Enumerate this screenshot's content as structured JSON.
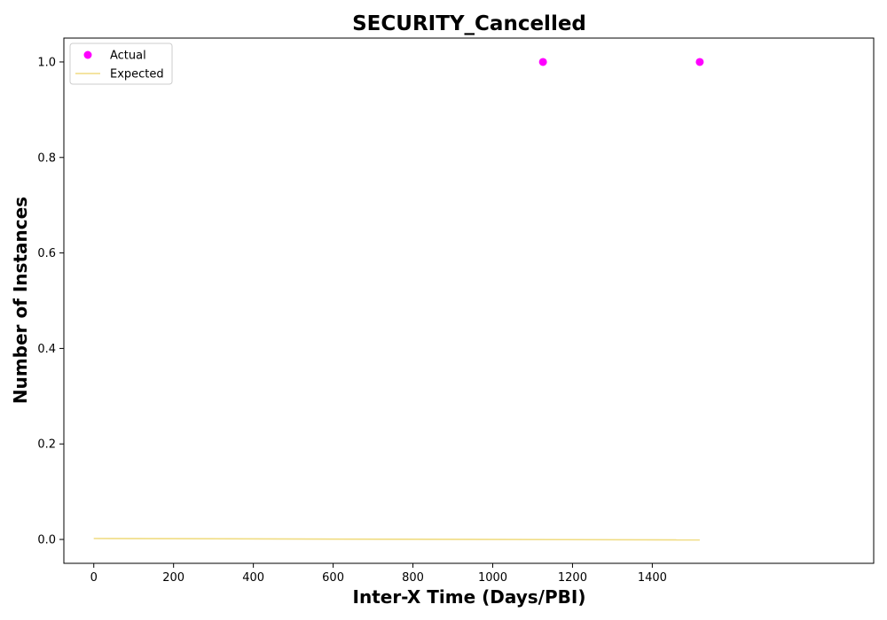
{
  "chart_data": {
    "type": "scatter",
    "title": "SECURITY_Cancelled",
    "xlabel": "Inter-X Time (Days/PBI)",
    "ylabel": "Number of Instances",
    "xlim": [
      -75,
      1955
    ],
    "ylim": [
      -0.05,
      1.05
    ],
    "xticks": [
      0,
      200,
      400,
      600,
      800,
      1000,
      1200,
      1400
    ],
    "yticks": [
      0.0,
      0.2,
      0.4,
      0.6,
      0.8,
      1.0
    ],
    "grid": false,
    "legend_position": "top-left",
    "series": [
      {
        "name": "Actual",
        "kind": "scatter",
        "color": "#ff00ff",
        "x": [
          1126,
          1519
        ],
        "y": [
          1.0,
          1.0
        ]
      },
      {
        "name": "Expected",
        "kind": "line",
        "color": "#f0dc82",
        "x": [
          0,
          1519
        ],
        "y": [
          0.002,
          -0.001
        ]
      }
    ]
  }
}
